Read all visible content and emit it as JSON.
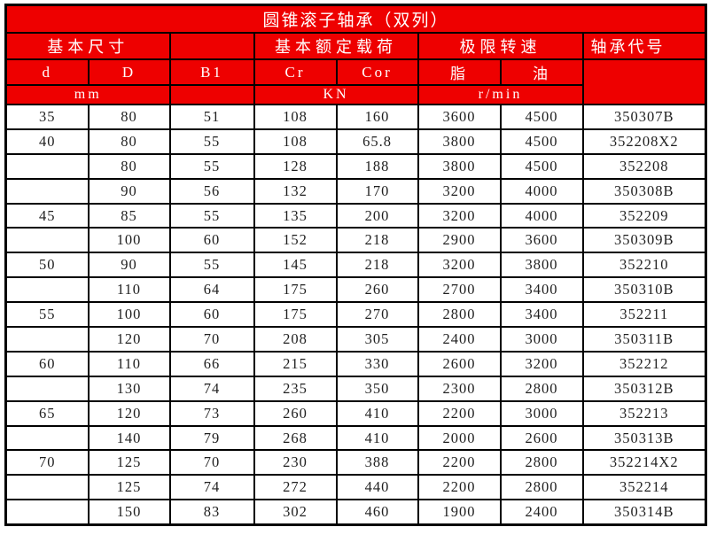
{
  "title": "圆锥滚子轴承（双列）",
  "colors": {
    "header_bg": "#ee0000",
    "header_text": "#ffffff",
    "grid_border": "#000000",
    "cell_bg": "#ffffff",
    "cell_text": "#1f1f1f"
  },
  "header": {
    "groups": {
      "basic_dimensions": "基本尺寸",
      "basic_rated_load": "基本额定载荷",
      "limit_speed": "极限转速",
      "bearing_code": "轴承代号"
    },
    "columns": {
      "d": "d",
      "D": "D",
      "B1": "B1",
      "Cr": "Cr",
      "Cor": "Cor",
      "grease": "脂",
      "oil": "油"
    },
    "units": {
      "dimensions": "mm",
      "load": "KN",
      "speed": "r/min"
    }
  },
  "table": {
    "column_keys": [
      "d",
      "D",
      "B1",
      "Cr",
      "Cor",
      "grease_speed",
      "oil_speed",
      "bearing_code"
    ],
    "rows": [
      [
        "35",
        "80",
        "51",
        "108",
        "160",
        "3600",
        "4500",
        "350307B"
      ],
      [
        "40",
        "80",
        "55",
        "108",
        "65.8",
        "3800",
        "4500",
        "352208X2"
      ],
      [
        "",
        "80",
        "55",
        "128",
        "188",
        "3800",
        "4500",
        "352208"
      ],
      [
        "",
        "90",
        "56",
        "132",
        "170",
        "3200",
        "4000",
        "350308B"
      ],
      [
        "45",
        "85",
        "55",
        "135",
        "200",
        "3200",
        "4000",
        "352209"
      ],
      [
        "",
        "100",
        "60",
        "152",
        "218",
        "2900",
        "3600",
        "350309B"
      ],
      [
        "50",
        "90",
        "55",
        "145",
        "218",
        "3200",
        "3800",
        "352210"
      ],
      [
        "",
        "110",
        "64",
        "175",
        "260",
        "2700",
        "3400",
        "350310B"
      ],
      [
        "55",
        "100",
        "60",
        "175",
        "270",
        "2800",
        "3400",
        "352211"
      ],
      [
        "",
        "120",
        "70",
        "208",
        "305",
        "2400",
        "3000",
        "350311B"
      ],
      [
        "60",
        "110",
        "66",
        "215",
        "330",
        "2600",
        "3200",
        "352212"
      ],
      [
        "",
        "130",
        "74",
        "235",
        "350",
        "2300",
        "2800",
        "350312B"
      ],
      [
        "65",
        "120",
        "73",
        "260",
        "410",
        "2200",
        "3000",
        "352213"
      ],
      [
        "",
        "140",
        "79",
        "268",
        "410",
        "2000",
        "2600",
        "350313B"
      ],
      [
        "70",
        "125",
        "70",
        "230",
        "388",
        "2200",
        "2800",
        "352214X2"
      ],
      [
        "",
        "125",
        "74",
        "272",
        "440",
        "2200",
        "2800",
        "352214"
      ],
      [
        "",
        "150",
        "83",
        "302",
        "460",
        "1900",
        "2400",
        "350314B"
      ]
    ]
  }
}
